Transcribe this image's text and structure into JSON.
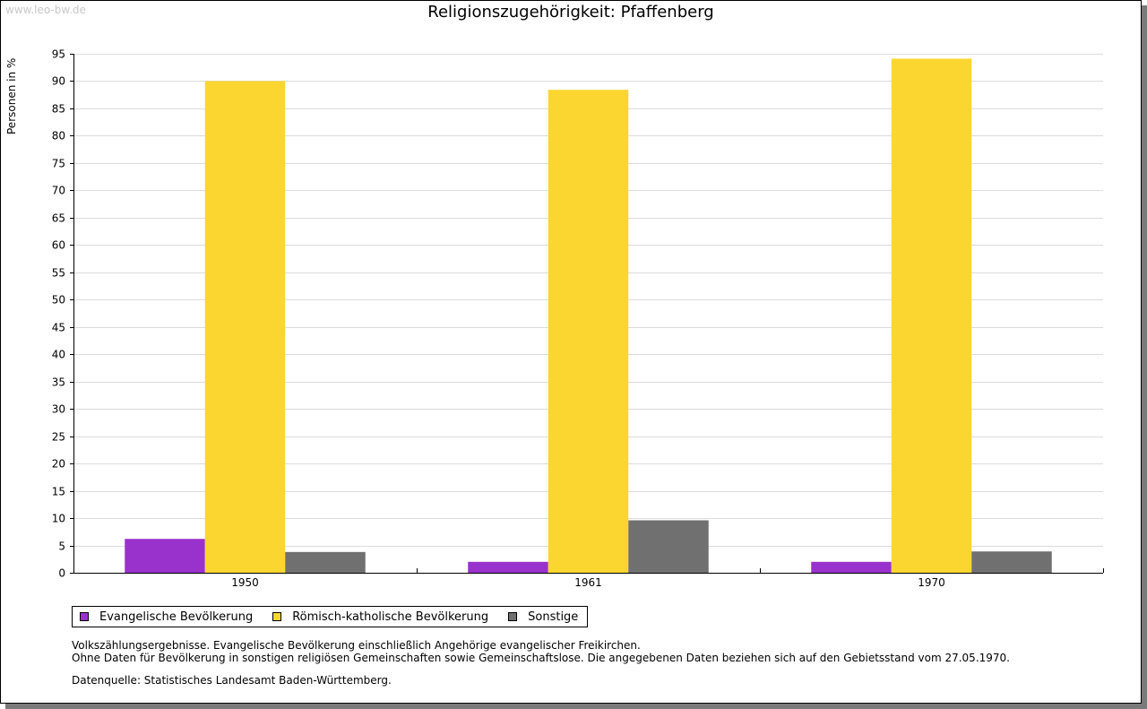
{
  "watermark": "www.leo-bw.de",
  "notes": {
    "line1": "Volkszählungsergebnisse. Evangelische Bevölkerung einschließlich Angehörige evangelischer Freikirchen.",
    "line2": "Ohne Daten für Bevölkerung in sonstigen religiösen Gemeinschaften sowie Gemeinschaftslose. Die angegebenen Daten beziehen sich auf den Gebietsstand vom 27.05.1970.",
    "source": "Datenquelle: Statistisches Landesamt Baden-Württemberg."
  },
  "chart_data": {
    "type": "bar",
    "title": "Religionszugehörigkeit: Pfaffenberg",
    "xlabel": "",
    "ylabel": "Personen in %",
    "categories": [
      "1950",
      "1961",
      "1970"
    ],
    "ylim": [
      0,
      95
    ],
    "yticks": [
      0,
      5,
      10,
      15,
      20,
      25,
      30,
      35,
      40,
      45,
      50,
      55,
      60,
      65,
      70,
      75,
      80,
      85,
      90,
      95
    ],
    "grid": true,
    "legend_position": "bottom-left",
    "series": [
      {
        "name": "Evangelische Bevölkerung",
        "color": "#9932cc",
        "values": [
          6.2,
          2.0,
          2.0
        ]
      },
      {
        "name": "Römisch-katholische Bevölkerung",
        "color": "#fcd630",
        "values": [
          90.0,
          88.4,
          94.1
        ]
      },
      {
        "name": "Sonstige",
        "color": "#707070",
        "values": [
          3.8,
          9.6,
          3.9
        ]
      }
    ]
  }
}
